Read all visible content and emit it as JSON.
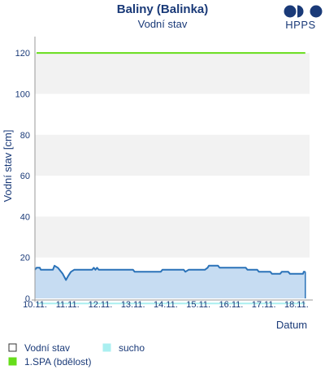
{
  "chart_data": {
    "type": "area",
    "title": "Baliny (Balinka)",
    "subtitle": "Vodní stav",
    "xlabel": "Datum",
    "ylabel": "Vodní stav [cm]",
    "ylim": [
      0,
      128
    ],
    "yticks": [
      0,
      20,
      40,
      60,
      80,
      100,
      120
    ],
    "xlim": [
      10,
      18.4
    ],
    "xticks": [
      {
        "x": 10,
        "label": "10.11."
      },
      {
        "x": 11,
        "label": "11.11."
      },
      {
        "x": 12,
        "label": "12.11."
      },
      {
        "x": 13,
        "label": "13.11."
      },
      {
        "x": 14,
        "label": "14.11."
      },
      {
        "x": 15,
        "label": "15.11."
      },
      {
        "x": 16,
        "label": "16.11."
      },
      {
        "x": 17,
        "label": "17.11."
      },
      {
        "x": 18,
        "label": "18.11."
      }
    ],
    "grid": "horizontal bands",
    "series": [
      {
        "name": "Vodní stav",
        "color": "#2a72b8",
        "fill": "#c6dcf2",
        "points": [
          [
            10.0,
            14
          ],
          [
            10.05,
            15
          ],
          [
            10.15,
            15
          ],
          [
            10.18,
            14
          ],
          [
            10.55,
            14
          ],
          [
            10.6,
            16
          ],
          [
            10.7,
            15
          ],
          [
            10.75,
            14
          ],
          [
            10.85,
            12
          ],
          [
            10.95,
            9
          ],
          [
            11.02,
            11
          ],
          [
            11.1,
            13
          ],
          [
            11.2,
            14
          ],
          [
            11.75,
            14
          ],
          [
            11.8,
            15
          ],
          [
            11.85,
            14
          ],
          [
            11.9,
            15
          ],
          [
            11.95,
            14
          ],
          [
            12.0,
            14
          ],
          [
            13.0,
            14
          ],
          [
            13.05,
            13
          ],
          [
            13.85,
            13
          ],
          [
            13.9,
            14
          ],
          [
            14.55,
            14
          ],
          [
            14.6,
            13
          ],
          [
            14.7,
            14
          ],
          [
            15.2,
            14
          ],
          [
            15.28,
            15
          ],
          [
            15.32,
            16
          ],
          [
            15.6,
            16
          ],
          [
            15.65,
            15
          ],
          [
            16.45,
            15
          ],
          [
            16.5,
            14
          ],
          [
            16.8,
            14
          ],
          [
            16.85,
            13
          ],
          [
            17.2,
            13
          ],
          [
            17.25,
            12
          ],
          [
            17.5,
            12
          ],
          [
            17.55,
            13
          ],
          [
            17.75,
            13
          ],
          [
            17.8,
            12
          ],
          [
            18.2,
            12
          ],
          [
            18.22,
            13
          ],
          [
            18.27,
            13
          ]
        ]
      },
      {
        "name": "1.SPA (bdělost)",
        "color": "#66dd1a",
        "points": [
          [
            10.05,
            120
          ],
          [
            18.27,
            120
          ]
        ]
      },
      {
        "name": "sucho",
        "color": "#aaeff0",
        "points": [
          [
            10.05,
            -2.5
          ],
          [
            18.27,
            -2.5
          ]
        ]
      }
    ]
  },
  "logo": {
    "text": "HPPS"
  },
  "legend": [
    {
      "label": "Vodní stav",
      "swatch": "#ffffff",
      "border": "#333333"
    },
    {
      "label": "sucho",
      "swatch": "#aaeff0",
      "border": "#aaeff0"
    },
    {
      "label": "1.SPA (bdělost)",
      "swatch": "#66dd1a",
      "border": "#66dd1a"
    }
  ]
}
